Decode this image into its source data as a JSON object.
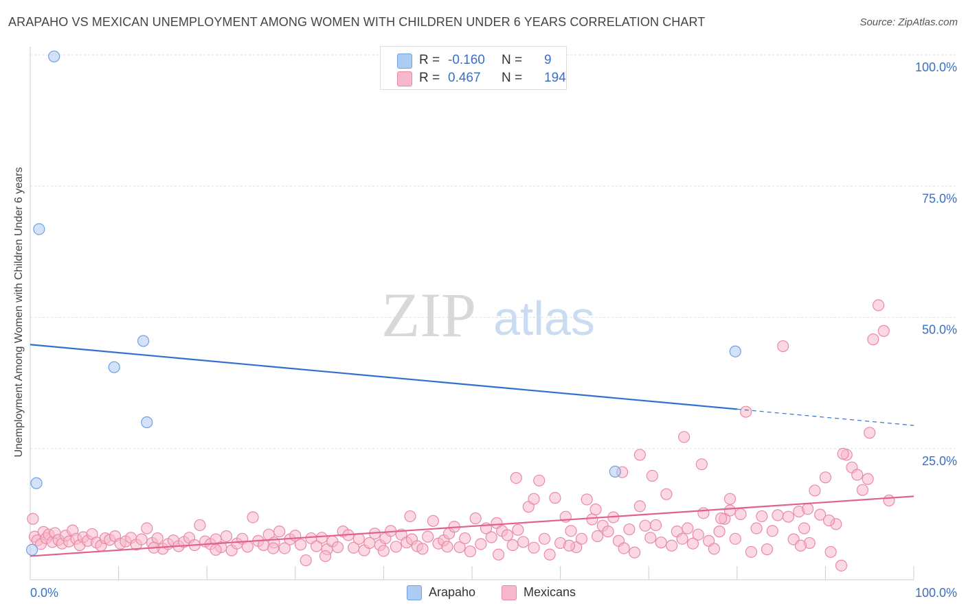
{
  "title": "ARAPAHO VS MEXICAN UNEMPLOYMENT AMONG WOMEN WITH CHILDREN UNDER 6 YEARS CORRELATION CHART",
  "source": "Source: ZipAtlas.com",
  "watermark": {
    "zip": "ZIP",
    "atlas": "atlas"
  },
  "legend": {
    "rows": [
      {
        "r_label": "R =",
        "r_value": "-0.160",
        "n_label": "N =",
        "n_value": "9",
        "color": "#aecbf3",
        "border": "#6e9fe0"
      },
      {
        "r_label": "R =",
        "r_value": "0.467",
        "n_label": "N =",
        "n_value": "194",
        "color": "#f7b8cb",
        "border": "#e88aa7"
      }
    ]
  },
  "bottom_legend": [
    {
      "label": "Arapaho",
      "color": "#aecbf3",
      "border": "#6e9fe0"
    },
    {
      "label": "Mexicans",
      "color": "#f7b8cb",
      "border": "#e88aa7"
    }
  ],
  "chart_data": {
    "type": "scatter",
    "ylabel": "Unemployment Among Women with Children Under 6 years",
    "x_tick_labels": [
      "0.0%",
      "100.0%"
    ],
    "y_tick_labels": [
      "100.0%",
      "75.0%",
      "50.0%",
      "25.0%"
    ],
    "xlim": [
      0,
      100
    ],
    "ylim": [
      0,
      100
    ],
    "grid": "horizontal dashed",
    "series": [
      {
        "name": "Arapaho",
        "color": "#6e9fe0",
        "fill": "#aecbf3",
        "line_color": "#2f6fd0",
        "trend": {
          "x0": 0,
          "y0": 44.8,
          "x1": 80,
          "y1": 32.5,
          "dash_to_x": 100,
          "dash_to_y": 29.4
        },
        "points": [
          [
            2.7,
            99.7
          ],
          [
            1,
            66.8
          ],
          [
            9.5,
            40.5
          ],
          [
            12.8,
            45.5
          ],
          [
            13.2,
            30.0
          ],
          [
            0.7,
            18.4
          ],
          [
            0.2,
            5.7
          ],
          [
            79.8,
            43.5
          ],
          [
            66.2,
            20.6
          ]
        ]
      },
      {
        "name": "Mexicans",
        "color": "#e88aa7",
        "fill": "#f7b8cb",
        "line_color": "#e0628c",
        "trend": {
          "x0": 0,
          "y0": 4.5,
          "x1": 100,
          "y1": 15.9
        },
        "points": [
          [
            0.3,
            11.6
          ],
          [
            0.5,
            8.2
          ],
          [
            0.8,
            7.5
          ],
          [
            1.2,
            6.8
          ],
          [
            1.5,
            9.1
          ],
          [
            1.8,
            7.9
          ],
          [
            2.1,
            8.6
          ],
          [
            2.5,
            7.2
          ],
          [
            2.8,
            8.9
          ],
          [
            3.2,
            7.6
          ],
          [
            3.6,
            6.9
          ],
          [
            4.0,
            8.4
          ],
          [
            4.4,
            7.3
          ],
          [
            4.8,
            9.4
          ],
          [
            5.2,
            7.8
          ],
          [
            5.6,
            6.6
          ],
          [
            6.0,
            8.1
          ],
          [
            6.5,
            7.4
          ],
          [
            7.0,
            8.7
          ],
          [
            7.5,
            7.1
          ],
          [
            8.0,
            6.5
          ],
          [
            8.5,
            7.9
          ],
          [
            9.0,
            7.6
          ],
          [
            9.6,
            8.3
          ],
          [
            10.2,
            6.9
          ],
          [
            10.8,
            7.3
          ],
          [
            11.4,
            8.0
          ],
          [
            12.0,
            6.7
          ],
          [
            12.6,
            7.7
          ],
          [
            13.2,
            9.8
          ],
          [
            13.8,
            7.0
          ],
          [
            14.4,
            7.9
          ],
          [
            15.0,
            5.9
          ],
          [
            15.6,
            6.8
          ],
          [
            16.2,
            7.5
          ],
          [
            16.8,
            6.4
          ],
          [
            17.4,
            7.2
          ],
          [
            18.0,
            8.0
          ],
          [
            18.6,
            6.6
          ],
          [
            19.2,
            10.4
          ],
          [
            19.8,
            7.3
          ],
          [
            20.4,
            6.8
          ],
          [
            21.0,
            7.7
          ],
          [
            21.6,
            6.2
          ],
          [
            22.2,
            8.3
          ],
          [
            22.8,
            5.6
          ],
          [
            23.4,
            6.9
          ],
          [
            24.0,
            7.8
          ],
          [
            24.6,
            6.3
          ],
          [
            25.2,
            11.9
          ],
          [
            25.8,
            7.4
          ],
          [
            26.4,
            6.6
          ],
          [
            27.0,
            8.6
          ],
          [
            27.6,
            7.1
          ],
          [
            28.2,
            9.2
          ],
          [
            28.8,
            6.0
          ],
          [
            29.4,
            7.7
          ],
          [
            30.0,
            8.4
          ],
          [
            30.6,
            6.7
          ],
          [
            31.2,
            3.7
          ],
          [
            31.8,
            7.9
          ],
          [
            32.4,
            6.4
          ],
          [
            33.0,
            8.0
          ],
          [
            33.6,
            5.8
          ],
          [
            34.2,
            7.3
          ],
          [
            34.8,
            6.2
          ],
          [
            35.4,
            9.2
          ],
          [
            36.0,
            8.5
          ],
          [
            36.6,
            6.1
          ],
          [
            37.2,
            7.8
          ],
          [
            37.8,
            5.6
          ],
          [
            38.4,
            7.0
          ],
          [
            39.0,
            8.8
          ],
          [
            39.6,
            6.6
          ],
          [
            40.2,
            7.9
          ],
          [
            40.8,
            9.3
          ],
          [
            41.4,
            6.3
          ],
          [
            42.0,
            8.6
          ],
          [
            42.6,
            7.1
          ],
          [
            43.2,
            7.7
          ],
          [
            43.8,
            6.4
          ],
          [
            44.4,
            5.9
          ],
          [
            45.0,
            8.2
          ],
          [
            45.6,
            11.2
          ],
          [
            46.2,
            6.9
          ],
          [
            46.8,
            7.5
          ],
          [
            47.4,
            8.8
          ],
          [
            48.0,
            10.1
          ],
          [
            48.6,
            6.2
          ],
          [
            49.2,
            7.9
          ],
          [
            49.8,
            5.4
          ],
          [
            50.4,
            11.7
          ],
          [
            51.0,
            6.8
          ],
          [
            51.6,
            9.8
          ],
          [
            52.2,
            8.1
          ],
          [
            52.8,
            10.8
          ],
          [
            53.4,
            9.3
          ],
          [
            54.0,
            8.5
          ],
          [
            54.6,
            6.6
          ],
          [
            55.2,
            9.5
          ],
          [
            55.8,
            7.2
          ],
          [
            56.4,
            13.9
          ],
          [
            57.0,
            6.1
          ],
          [
            57.6,
            18.9
          ],
          [
            58.2,
            7.8
          ],
          [
            58.8,
            4.8
          ],
          [
            59.4,
            15.6
          ],
          [
            60.0,
            7.0
          ],
          [
            60.6,
            12.0
          ],
          [
            61.2,
            9.3
          ],
          [
            61.8,
            6.2
          ],
          [
            62.4,
            7.8
          ],
          [
            63.0,
            15.3
          ],
          [
            63.6,
            11.5
          ],
          [
            64.2,
            8.3
          ],
          [
            64.8,
            10.3
          ],
          [
            65.4,
            9.2
          ],
          [
            66.0,
            11.9
          ],
          [
            66.6,
            7.4
          ],
          [
            67.2,
            6.0
          ],
          [
            67.8,
            9.6
          ],
          [
            68.4,
            5.2
          ],
          [
            69.0,
            14.0
          ],
          [
            69.6,
            10.3
          ],
          [
            70.2,
            8.0
          ],
          [
            70.8,
            10.4
          ],
          [
            71.4,
            7.1
          ],
          [
            72.0,
            16.3
          ],
          [
            72.6,
            6.5
          ],
          [
            73.2,
            9.2
          ],
          [
            73.8,
            7.8
          ],
          [
            74.4,
            9.8
          ],
          [
            75.0,
            6.9
          ],
          [
            75.6,
            8.6
          ],
          [
            76.2,
            12.7
          ],
          [
            76.8,
            7.4
          ],
          [
            77.4,
            5.9
          ],
          [
            78.0,
            9.2
          ],
          [
            78.6,
            11.6
          ],
          [
            79.2,
            13.2
          ],
          [
            79.8,
            7.8
          ],
          [
            80.4,
            12.5
          ],
          [
            81.0,
            32.0
          ],
          [
            81.6,
            5.3
          ],
          [
            82.2,
            9.8
          ],
          [
            82.8,
            12.1
          ],
          [
            83.4,
            5.8
          ],
          [
            84.0,
            9.3
          ],
          [
            84.6,
            12.3
          ],
          [
            85.2,
            44.5
          ],
          [
            85.8,
            12.0
          ],
          [
            86.4,
            7.7
          ],
          [
            87.0,
            13.0
          ],
          [
            87.6,
            9.8
          ],
          [
            88.2,
            7.0
          ],
          [
            88.8,
            17.0
          ],
          [
            89.4,
            12.4
          ],
          [
            90.0,
            19.5
          ],
          [
            90.6,
            5.3
          ],
          [
            91.2,
            10.6
          ],
          [
            91.8,
            2.7
          ],
          [
            92.4,
            23.8
          ],
          [
            93.0,
            21.4
          ],
          [
            93.6,
            20.0
          ],
          [
            94.2,
            17.1
          ],
          [
            94.8,
            19.2
          ],
          [
            95.4,
            45.8
          ],
          [
            96.0,
            52.3
          ],
          [
            96.6,
            47.4
          ],
          [
            97.2,
            15.1
          ],
          [
            74.0,
            27.2
          ],
          [
            69.0,
            23.8
          ],
          [
            70.4,
            19.8
          ],
          [
            76.0,
            22.0
          ],
          [
            78.2,
            11.7
          ],
          [
            79.2,
            15.4
          ],
          [
            64.0,
            13.4
          ],
          [
            67.0,
            20.5
          ],
          [
            55.0,
            19.4
          ],
          [
            57.0,
            15.4
          ],
          [
            92.0,
            24.0
          ],
          [
            95.0,
            28.0
          ],
          [
            87.2,
            6.5
          ],
          [
            43.0,
            12.1
          ],
          [
            88.0,
            13.5
          ],
          [
            90.4,
            11.3
          ],
          [
            61.0,
            6.5
          ],
          [
            53.0,
            4.8
          ],
          [
            47.2,
            6.3
          ],
          [
            40.0,
            5.5
          ],
          [
            33.4,
            4.5
          ],
          [
            27.5,
            6.0
          ],
          [
            21.0,
            5.7
          ],
          [
            14.0,
            6.1
          ]
        ]
      }
    ]
  }
}
